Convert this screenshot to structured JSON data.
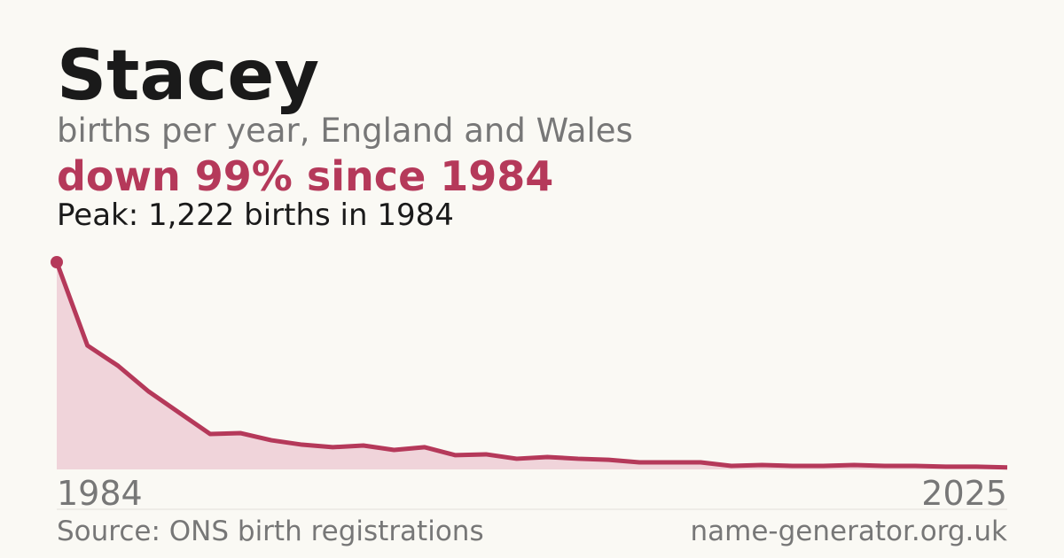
{
  "chart_data": {
    "type": "area",
    "title": "Stacey",
    "subtitle": "births per year, England and Wales",
    "annotation": "down 99% since 1984",
    "peak_note": "Peak: 1,222 births in 1984",
    "source": "Source: ONS birth registrations",
    "site": "name-generator.org.uk",
    "categories": [
      "1984",
      null,
      null,
      null,
      null,
      null,
      null,
      null,
      null,
      null,
      null,
      null,
      null,
      null,
      null,
      null,
      null,
      null,
      null,
      null,
      null,
      null,
      null,
      null,
      null,
      null,
      null,
      null,
      null,
      null,
      null,
      "2025"
    ],
    "values": [
      1222,
      731,
      611,
      459,
      334,
      209,
      214,
      172,
      146,
      131,
      141,
      115,
      131,
      84,
      89,
      63,
      73,
      63,
      57,
      42,
      42,
      42,
      21,
      26,
      21,
      21,
      26,
      21,
      21,
      16,
      16,
      12
    ],
    "color": "#b5395a",
    "fill_color": "#f0d4da",
    "ylim": [
      0,
      1222
    ]
  }
}
